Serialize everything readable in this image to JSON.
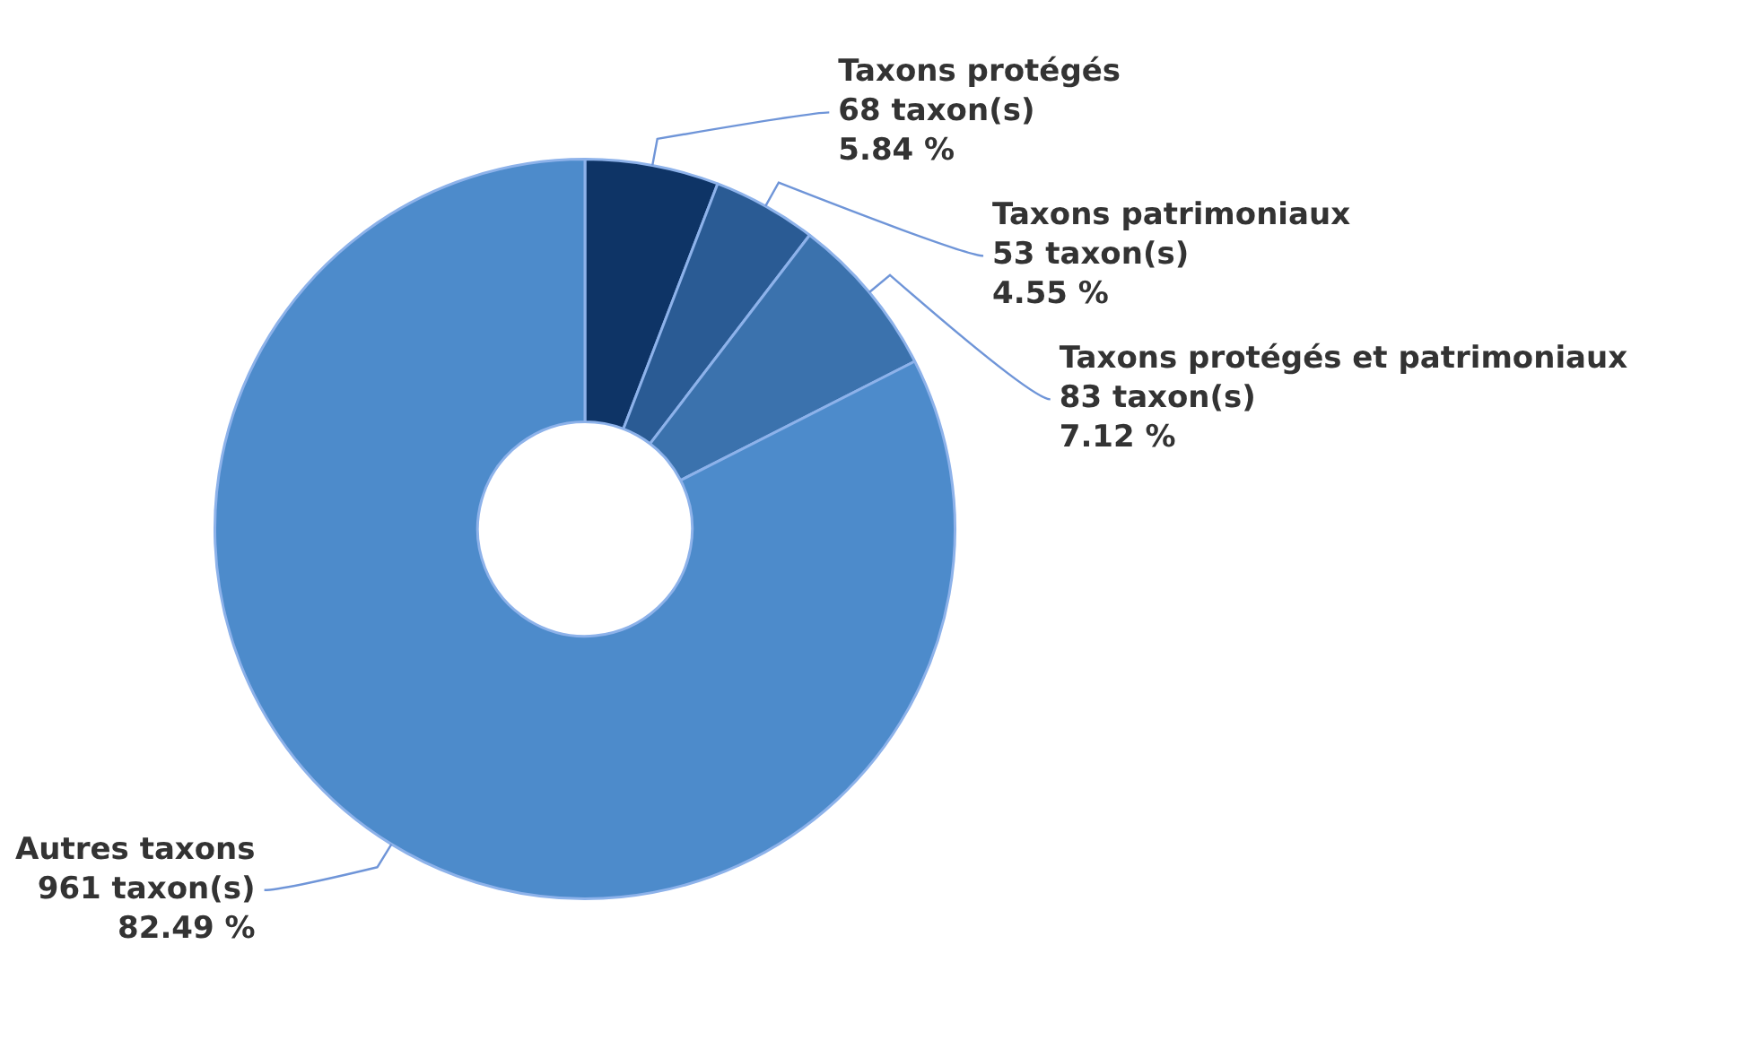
{
  "chart_data": {
    "type": "donut",
    "categories": [
      "Taxons protégés",
      "Taxons patrimoniaux",
      "Taxons protégés et patrimoniaux",
      "Autres taxons"
    ],
    "values": [
      68,
      53,
      83,
      961
    ],
    "value_labels": [
      "68 taxon(s)\n5.84 %",
      "53 taxon(s)\n4.55 %",
      "83 taxon(s)\n7.12 %",
      "961 taxon(s)\n82.49 %"
    ],
    "colors": [
      "#0e3466",
      "#2a5b94",
      "#3b72ad",
      "#4d8bcb"
    ],
    "legend": false
  }
}
